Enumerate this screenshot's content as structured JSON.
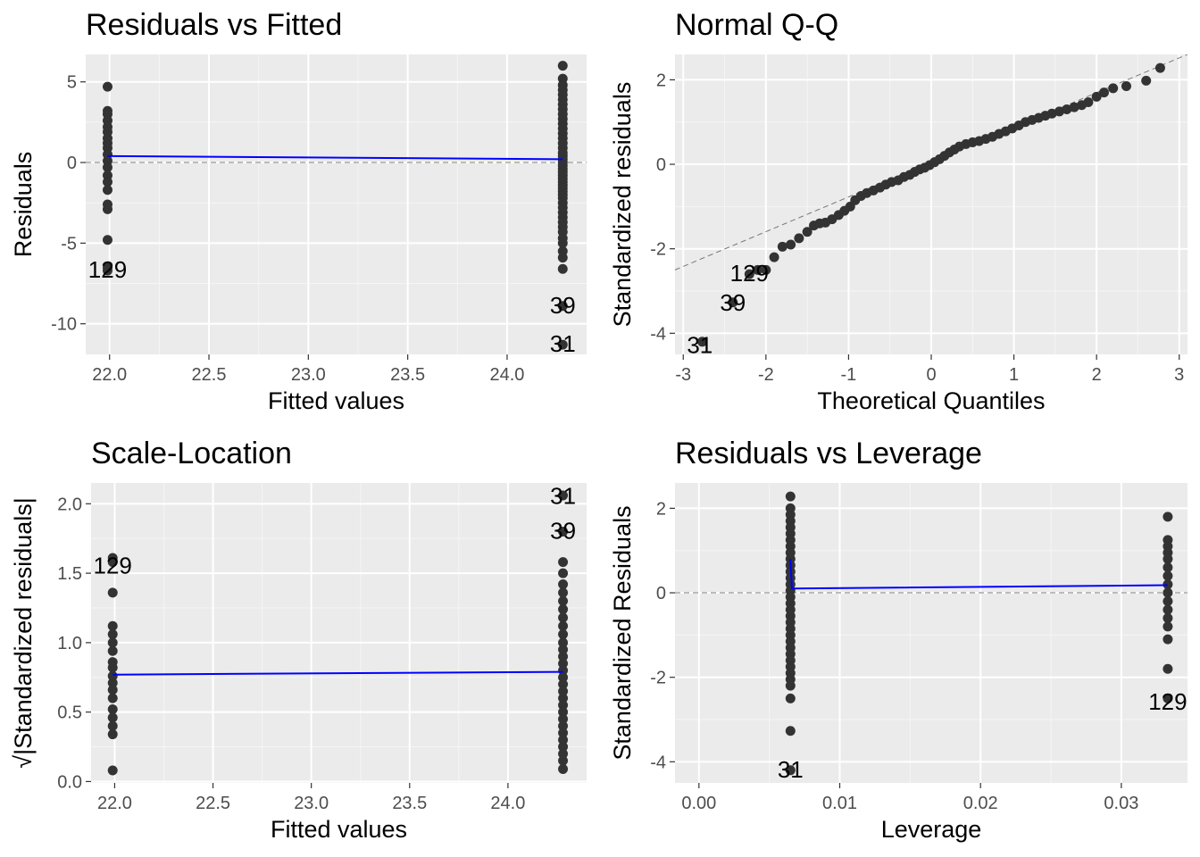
{
  "panels": [
    {
      "type": "scatter",
      "title": "Residuals vs Fitted",
      "xlabel": "Fitted values",
      "ylabel": "Residuals",
      "xlim": [
        21.88,
        24.4
      ],
      "ylim": [
        -11.9,
        6.7
      ],
      "xticks": [
        22.0,
        22.5,
        23.0,
        23.5,
        24.0
      ],
      "xtick_labels": [
        "22.0",
        "22.5",
        "23.0",
        "23.5",
        "24.0"
      ],
      "yticks": [
        -10,
        -5,
        0,
        5
      ],
      "ytick_labels": [
        "-10",
        "-5",
        "0",
        "5"
      ],
      "refline": 0,
      "smooth": [
        [
          21.99,
          0.4
        ],
        [
          24.28,
          0.2
        ]
      ],
      "annotations": [
        {
          "x": 21.99,
          "y": -6.7,
          "text": "129"
        },
        {
          "x": 24.28,
          "y": -8.9,
          "text": "39"
        },
        {
          "x": 24.28,
          "y": -11.3,
          "text": "31"
        }
      ],
      "groups": [
        {
          "x": 21.99,
          "y": [
            4.7,
            3.2,
            3.0,
            2.6,
            2.2,
            1.9,
            1.5,
            1.2,
            0.9,
            0.5,
            0.1,
            -0.3,
            -0.8,
            -1.2,
            -1.7,
            -2.6,
            -2.9,
            -4.8,
            -6.5,
            -6.7
          ]
        },
        {
          "x": 24.28,
          "y": [
            6.0,
            5.2,
            4.8,
            4.5,
            4.2,
            3.9,
            3.6,
            3.3,
            3.0,
            2.7,
            2.4,
            2.1,
            1.8,
            1.5,
            1.2,
            0.9,
            0.6,
            0.4,
            0.2,
            0.0,
            -0.2,
            -0.4,
            -0.6,
            -0.8,
            -1.0,
            -1.2,
            -1.4,
            -1.6,
            -1.8,
            -2.0,
            -2.2,
            -2.5,
            -2.8,
            -3.1,
            -3.4,
            -3.7,
            -4.0,
            -4.3,
            -4.7,
            -5.0,
            -5.5,
            -5.9,
            -6.6,
            -8.9,
            -11.3
          ]
        }
      ]
    },
    {
      "type": "scatter",
      "title": "Normal Q-Q",
      "xlabel": "Theoretical Quantiles",
      "ylabel": "Standardized residuals",
      "xlim": [
        -3.1,
        3.1
      ],
      "ylim": [
        -4.5,
        2.6
      ],
      "xticks": [
        -3,
        -2,
        -1,
        0,
        1,
        2,
        3
      ],
      "xtick_labels": [
        "-3",
        "-2",
        "-1",
        "0",
        "1",
        "2",
        "3"
      ],
      "yticks": [
        -4,
        -2,
        0,
        2
      ],
      "ytick_labels": [
        "-4",
        "-2",
        "0",
        "2"
      ],
      "qqline": [
        [
          -3.1,
          -2.5
        ],
        [
          3.1,
          2.6
        ]
      ],
      "annotations": [
        {
          "x": -2.2,
          "y": -2.6,
          "text": "129"
        },
        {
          "x": -2.4,
          "y": -3.3,
          "text": "39"
        },
        {
          "x": -2.8,
          "y": -4.3,
          "text": "31"
        }
      ],
      "points": [
        [
          -2.77,
          -4.2
        ],
        [
          -2.4,
          -3.27
        ],
        [
          -2.2,
          -2.6
        ],
        [
          -2.1,
          -2.5
        ],
        [
          -2.0,
          -2.5
        ],
        [
          -1.9,
          -2.2
        ],
        [
          -1.8,
          -1.95
        ],
        [
          -1.7,
          -1.9
        ],
        [
          -1.6,
          -1.75
        ],
        [
          -1.5,
          -1.6
        ],
        [
          -1.42,
          -1.45
        ],
        [
          -1.35,
          -1.4
        ],
        [
          -1.28,
          -1.38
        ],
        [
          -1.2,
          -1.3
        ],
        [
          -1.12,
          -1.2
        ],
        [
          -1.05,
          -1.1
        ],
        [
          -0.98,
          -1.0
        ],
        [
          -0.92,
          -0.85
        ],
        [
          -0.85,
          -0.75
        ],
        [
          -0.78,
          -0.68
        ],
        [
          -0.7,
          -0.62
        ],
        [
          -0.62,
          -0.55
        ],
        [
          -0.55,
          -0.48
        ],
        [
          -0.48,
          -0.42
        ],
        [
          -0.4,
          -0.38
        ],
        [
          -0.33,
          -0.3
        ],
        [
          -0.26,
          -0.25
        ],
        [
          -0.2,
          -0.18
        ],
        [
          -0.14,
          -0.12
        ],
        [
          -0.08,
          -0.08
        ],
        [
          -0.02,
          -0.02
        ],
        [
          0.04,
          0.05
        ],
        [
          0.1,
          0.12
        ],
        [
          0.16,
          0.2
        ],
        [
          0.22,
          0.28
        ],
        [
          0.28,
          0.35
        ],
        [
          0.34,
          0.42
        ],
        [
          0.42,
          0.48
        ],
        [
          0.5,
          0.52
        ],
        [
          0.58,
          0.55
        ],
        [
          0.66,
          0.6
        ],
        [
          0.74,
          0.65
        ],
        [
          0.82,
          0.72
        ],
        [
          0.9,
          0.78
        ],
        [
          0.98,
          0.85
        ],
        [
          1.06,
          0.92
        ],
        [
          1.14,
          1.0
        ],
        [
          1.22,
          1.05
        ],
        [
          1.3,
          1.1
        ],
        [
          1.38,
          1.15
        ],
        [
          1.46,
          1.2
        ],
        [
          1.55,
          1.25
        ],
        [
          1.64,
          1.3
        ],
        [
          1.73,
          1.35
        ],
        [
          1.82,
          1.4
        ],
        [
          1.9,
          1.47
        ],
        [
          2.0,
          1.6
        ],
        [
          2.09,
          1.7
        ],
        [
          2.2,
          1.8
        ],
        [
          2.36,
          1.85
        ],
        [
          2.6,
          1.98
        ],
        [
          2.77,
          2.28
        ]
      ]
    },
    {
      "type": "scatter",
      "title": "Scale-Location",
      "xlabel": "Fitted values",
      "ylabel": "√|Standardized residuals|",
      "xlim": [
        21.88,
        24.4
      ],
      "ylim": [
        -0.01,
        2.15
      ],
      "xticks": [
        22.0,
        22.5,
        23.0,
        23.5,
        24.0
      ],
      "xtick_labels": [
        "22.0",
        "22.5",
        "23.0",
        "23.5",
        "24.0"
      ],
      "yticks": [
        0.0,
        0.5,
        1.0,
        1.5,
        2.0
      ],
      "ytick_labels": [
        "0.0",
        "0.5",
        "1.0",
        "1.5",
        "2.0"
      ],
      "smooth": [
        [
          21.99,
          0.77
        ],
        [
          24.28,
          0.79
        ]
      ],
      "annotations": [
        {
          "x": 21.99,
          "y": 1.55,
          "text": "129"
        },
        {
          "x": 24.28,
          "y": 2.05,
          "text": "31"
        },
        {
          "x": 24.28,
          "y": 1.8,
          "text": "39"
        }
      ],
      "groups": [
        {
          "x": 21.99,
          "y": [
            1.61,
            1.58,
            1.36,
            1.12,
            1.06,
            1.0,
            0.94,
            0.86,
            0.82,
            0.76,
            0.71,
            0.66,
            0.6,
            0.52,
            0.46,
            0.4,
            0.34,
            0.08
          ]
        },
        {
          "x": 24.28,
          "y": [
            2.06,
            1.8,
            1.58,
            1.5,
            1.42,
            1.36,
            1.3,
            1.24,
            1.18,
            1.12,
            1.06,
            1.0,
            0.95,
            0.9,
            0.85,
            0.8,
            0.75,
            0.7,
            0.65,
            0.6,
            0.55,
            0.5,
            0.45,
            0.4,
            0.35,
            0.3,
            0.25,
            0.2,
            0.15,
            0.09
          ]
        }
      ]
    },
    {
      "type": "scatter",
      "title": "Residuals vs Leverage",
      "xlabel": "Leverage",
      "ylabel": "Standardized Residuals",
      "xlim": [
        -0.0017,
        0.0347
      ],
      "ylim": [
        -4.5,
        2.6
      ],
      "xticks": [
        0.0,
        0.01,
        0.02,
        0.03
      ],
      "xtick_labels": [
        "0.00",
        "0.01",
        "0.02",
        "0.03"
      ],
      "yticks": [
        -4,
        -2,
        0,
        2
      ],
      "ytick_labels": [
        "-4",
        "-2",
        "0",
        "2"
      ],
      "refline": 0,
      "smooth": [
        [
          0.0065,
          0.8
        ],
        [
          0.0066,
          0.1
        ],
        [
          0.0333,
          0.18
        ]
      ],
      "annotations": [
        {
          "x": 0.0065,
          "y": -4.2,
          "text": "31"
        },
        {
          "x": 0.0333,
          "y": -2.6,
          "text": "129"
        }
      ],
      "groups": [
        {
          "x": 0.0065,
          "y": [
            2.28,
            2.0,
            1.85,
            1.7,
            1.55,
            1.4,
            1.25,
            1.1,
            0.95,
            0.8,
            0.65,
            0.5,
            0.35,
            0.2,
            0.05,
            -0.1,
            -0.25,
            -0.4,
            -0.55,
            -0.7,
            -0.85,
            -1.0,
            -1.15,
            -1.3,
            -1.45,
            -1.6,
            -1.75,
            -1.9,
            -2.05,
            -2.2,
            -2.5,
            -3.27,
            -4.2
          ]
        },
        {
          "x": 0.0333,
          "y": [
            1.8,
            1.25,
            1.1,
            0.95,
            0.8,
            0.6,
            0.4,
            0.2,
            0.0,
            -0.2,
            -0.4,
            -0.6,
            -0.8,
            -1.1,
            -1.8,
            -2.5
          ]
        }
      ]
    }
  ]
}
